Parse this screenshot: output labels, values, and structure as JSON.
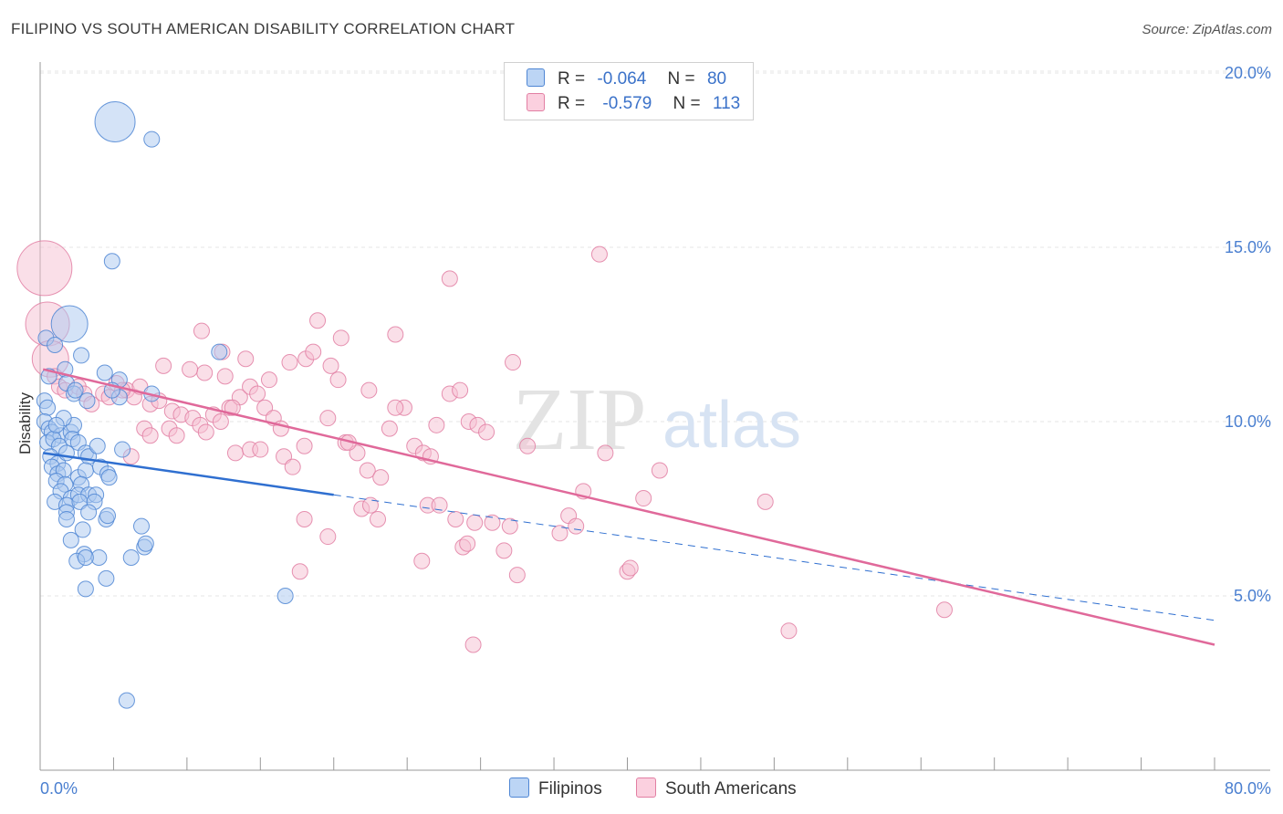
{
  "title": "FILIPINO VS SOUTH AMERICAN DISABILITY CORRELATION CHART",
  "source": "Source: ZipAtlas.com",
  "legend": {
    "r_label": "R =",
    "n_label": "N =",
    "series": [
      {
        "r": "-0.064",
        "n": "80"
      },
      {
        "r": "-0.579",
        "n": "113"
      }
    ]
  },
  "watermark": {
    "zip": "ZIP",
    "atlas": "atlas"
  },
  "colors": {
    "blue_fill": "#a9c8f0",
    "blue_stroke": "#4f86d4",
    "blue_line": "#2f6fd0",
    "pink_fill": "#f6bfd2",
    "pink_stroke": "#e27fa3",
    "pink_line": "#e0699a",
    "tick_text": "#4a7fd0"
  },
  "chart_data": {
    "type": "scatter",
    "xlabel": "",
    "ylabel": "Disability",
    "xlim": [
      0,
      80
    ],
    "ylim": [
      0,
      20
    ],
    "x_tick_labels": [
      "0.0%",
      "80.0%"
    ],
    "y_ticks": [
      {
        "value": 20,
        "label": "20.0%"
      },
      {
        "value": 15,
        "label": "15.0%"
      },
      {
        "value": 10,
        "label": "10.0%"
      },
      {
        "value": 5,
        "label": "5.0%"
      }
    ],
    "grid": true,
    "legend_position": "bottom",
    "series": [
      {
        "name": "Filipinos",
        "color": "#4f86d4",
        "trend": {
          "x0": 0.2,
          "y0": 9.1,
          "x1": 20.0,
          "y1": 7.9,
          "dash_x1": 80.0,
          "dash_y1": 4.3
        },
        "points": [
          [
            5.1,
            18.6
          ],
          [
            7.6,
            18.1
          ],
          [
            4.9,
            14.6
          ],
          [
            0.4,
            12.4
          ],
          [
            2.0,
            12.8
          ],
          [
            2.8,
            11.9
          ],
          [
            0.6,
            11.3
          ],
          [
            4.4,
            11.4
          ],
          [
            5.4,
            11.2
          ],
          [
            12.2,
            12.0
          ],
          [
            1.7,
            11.5
          ],
          [
            1.8,
            11.1
          ],
          [
            2.3,
            10.8
          ],
          [
            2.4,
            10.9
          ],
          [
            3.2,
            10.6
          ],
          [
            5.4,
            10.7
          ],
          [
            0.3,
            10.6
          ],
          [
            0.5,
            10.4
          ],
          [
            7.6,
            10.8
          ],
          [
            4.9,
            10.9
          ],
          [
            0.3,
            10.0
          ],
          [
            0.6,
            9.8
          ],
          [
            0.8,
            9.7
          ],
          [
            1.4,
            9.6
          ],
          [
            2.1,
            9.7
          ],
          [
            2.3,
            9.9
          ],
          [
            0.5,
            9.4
          ],
          [
            0.9,
            9.5
          ],
          [
            1.3,
            9.3
          ],
          [
            2.2,
            9.5
          ],
          [
            2.6,
            9.4
          ],
          [
            3.1,
            9.1
          ],
          [
            3.3,
            9.0
          ],
          [
            0.7,
            9.0
          ],
          [
            1.2,
            8.8
          ],
          [
            1.8,
            9.1
          ],
          [
            5.6,
            9.2
          ],
          [
            0.8,
            8.7
          ],
          [
            1.2,
            8.5
          ],
          [
            1.6,
            8.6
          ],
          [
            2.6,
            8.4
          ],
          [
            3.1,
            8.6
          ],
          [
            4.1,
            8.7
          ],
          [
            4.6,
            8.5
          ],
          [
            1.1,
            8.3
          ],
          [
            1.7,
            8.2
          ],
          [
            2.8,
            8.2
          ],
          [
            4.7,
            8.4
          ],
          [
            1.4,
            8.0
          ],
          [
            2.1,
            7.8
          ],
          [
            2.6,
            7.9
          ],
          [
            3.3,
            7.9
          ],
          [
            3.8,
            7.9
          ],
          [
            1.0,
            7.7
          ],
          [
            1.8,
            7.6
          ],
          [
            2.7,
            7.7
          ],
          [
            3.7,
            7.7
          ],
          [
            1.8,
            7.4
          ],
          [
            3.3,
            7.4
          ],
          [
            4.5,
            7.2
          ],
          [
            4.6,
            7.3
          ],
          [
            1.8,
            7.2
          ],
          [
            6.9,
            7.0
          ],
          [
            2.9,
            6.9
          ],
          [
            2.1,
            6.6
          ],
          [
            7.1,
            6.4
          ],
          [
            7.2,
            6.5
          ],
          [
            3.0,
            6.2
          ],
          [
            4.0,
            6.1
          ],
          [
            6.2,
            6.1
          ],
          [
            2.5,
            6.0
          ],
          [
            3.1,
            6.1
          ],
          [
            4.5,
            5.5
          ],
          [
            3.1,
            5.2
          ],
          [
            16.7,
            5.0
          ],
          [
            5.9,
            2.0
          ],
          [
            1.0,
            12.2
          ],
          [
            1.6,
            10.1
          ],
          [
            3.9,
            9.3
          ],
          [
            1.1,
            9.9
          ]
        ],
        "sizes": {
          "0": 22,
          "4": 20
        }
      },
      {
        "name": "South Americans",
        "color": "#e27fa3",
        "trend": {
          "x0": 0.2,
          "y0": 11.5,
          "x1": 80.0,
          "y1": 3.6
        },
        "points": [
          [
            0.3,
            14.4
          ],
          [
            0.5,
            12.8
          ],
          [
            0.7,
            11.8
          ],
          [
            1.0,
            11.3
          ],
          [
            1.3,
            11.0
          ],
          [
            1.7,
            10.9
          ],
          [
            2.6,
            11.0
          ],
          [
            3.0,
            10.8
          ],
          [
            3.5,
            10.5
          ],
          [
            4.3,
            10.8
          ],
          [
            4.7,
            10.7
          ],
          [
            5.2,
            11.1
          ],
          [
            5.9,
            10.9
          ],
          [
            6.4,
            10.7
          ],
          [
            6.8,
            11.0
          ],
          [
            7.5,
            10.5
          ],
          [
            8.4,
            11.6
          ],
          [
            9.0,
            10.3
          ],
          [
            9.6,
            10.2
          ],
          [
            10.4,
            10.1
          ],
          [
            10.9,
            9.9
          ],
          [
            11.2,
            11.4
          ],
          [
            11.8,
            10.2
          ],
          [
            12.3,
            10.0
          ],
          [
            12.9,
            10.4
          ],
          [
            13.6,
            10.7
          ],
          [
            14.3,
            11.0
          ],
          [
            14.8,
            10.8
          ],
          [
            15.3,
            10.4
          ],
          [
            15.9,
            10.1
          ],
          [
            16.4,
            9.8
          ],
          [
            7.1,
            9.8
          ],
          [
            8.8,
            9.8
          ],
          [
            9.3,
            9.6
          ],
          [
            11.3,
            9.7
          ],
          [
            13.3,
            9.1
          ],
          [
            14.3,
            9.2
          ],
          [
            15.0,
            9.2
          ],
          [
            16.6,
            9.0
          ],
          [
            17.2,
            8.7
          ],
          [
            11.0,
            12.6
          ],
          [
            12.4,
            12.0
          ],
          [
            14.0,
            11.8
          ],
          [
            15.6,
            11.2
          ],
          [
            17.0,
            11.7
          ],
          [
            18.1,
            11.8
          ],
          [
            18.6,
            12.0
          ],
          [
            18.9,
            12.9
          ],
          [
            20.5,
            12.4
          ],
          [
            24.2,
            12.5
          ],
          [
            19.6,
            10.1
          ],
          [
            20.8,
            9.4
          ],
          [
            21.6,
            9.1
          ],
          [
            22.3,
            8.6
          ],
          [
            23.2,
            8.4
          ],
          [
            23.8,
            9.8
          ],
          [
            24.8,
            10.4
          ],
          [
            25.5,
            9.3
          ],
          [
            26.1,
            9.1
          ],
          [
            26.6,
            9.0
          ],
          [
            27.0,
            9.9
          ],
          [
            27.9,
            10.8
          ],
          [
            28.6,
            10.9
          ],
          [
            29.2,
            10.0
          ],
          [
            29.8,
            9.9
          ],
          [
            30.4,
            9.7
          ],
          [
            21.9,
            7.5
          ],
          [
            22.5,
            7.6
          ],
          [
            23.0,
            7.2
          ],
          [
            26.4,
            7.6
          ],
          [
            27.2,
            7.6
          ],
          [
            28.3,
            7.2
          ],
          [
            29.6,
            7.1
          ],
          [
            30.8,
            7.1
          ],
          [
            32.0,
            7.0
          ],
          [
            18.0,
            7.2
          ],
          [
            19.6,
            6.7
          ],
          [
            28.8,
            6.4
          ],
          [
            31.6,
            6.3
          ],
          [
            32.5,
            5.6
          ],
          [
            35.4,
            6.8
          ],
          [
            36.0,
            7.3
          ],
          [
            37.0,
            8.0
          ],
          [
            38.5,
            9.1
          ],
          [
            40.0,
            5.7
          ],
          [
            40.2,
            5.8
          ],
          [
            41.1,
            7.8
          ],
          [
            42.2,
            8.6
          ],
          [
            49.4,
            7.7
          ],
          [
            51.0,
            4.0
          ],
          [
            61.6,
            4.6
          ],
          [
            29.5,
            3.6
          ],
          [
            38.1,
            14.8
          ],
          [
            27.9,
            14.1
          ],
          [
            32.2,
            11.7
          ],
          [
            24.2,
            10.4
          ],
          [
            18.0,
            9.3
          ],
          [
            22.4,
            10.9
          ],
          [
            20.3,
            11.2
          ],
          [
            19.8,
            11.6
          ],
          [
            12.6,
            11.3
          ],
          [
            13.1,
            10.4
          ],
          [
            10.2,
            11.5
          ],
          [
            8.1,
            10.6
          ],
          [
            7.5,
            9.6
          ],
          [
            6.2,
            9.0
          ],
          [
            5.6,
            10.9
          ],
          [
            26.0,
            6.0
          ],
          [
            29.1,
            6.5
          ],
          [
            17.7,
            5.7
          ],
          [
            33.2,
            9.3
          ],
          [
            36.5,
            7.0
          ],
          [
            21.0,
            9.4
          ]
        ],
        "sizes": {
          "0": 30,
          "1": 24,
          "2": 20
        }
      }
    ]
  },
  "bottom_legend": [
    {
      "label": "Filipinos"
    },
    {
      "label": "South Americans"
    }
  ]
}
